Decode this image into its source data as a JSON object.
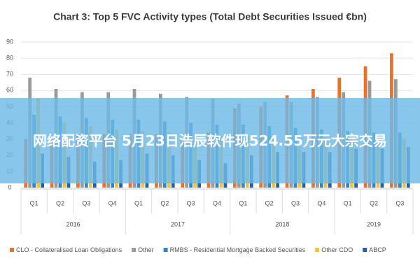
{
  "chart_data": {
    "type": "bar",
    "title": "Chart 3: Top 5 FVC Activity types (Total Debt Securities Issued €bn)",
    "categories": [
      "Q1",
      "Q2",
      "Q3",
      "Q4",
      "Q1",
      "Q2",
      "Q3",
      "Q4",
      "Q1",
      "Q2",
      "Q3",
      "Q4",
      "Q1",
      "Q2",
      "Q3"
    ],
    "year_labels": [
      "2016",
      "2017",
      "2018",
      "2019"
    ],
    "series": [
      {
        "name": "CLO - Collateralised Loan Obligations",
        "color": "#e8742c",
        "values": [
          30,
          31,
          33,
          33,
          33,
          33,
          30,
          34,
          49,
          50,
          57,
          61,
          68,
          75,
          83
        ]
      },
      {
        "name": "Other",
        "color": "#9a9a9a",
        "values": [
          68,
          61,
          59,
          59,
          61,
          58,
          56,
          55,
          52,
          53,
          53,
          56,
          59,
          66,
          67
        ]
      },
      {
        "name": "RMBS - Residential Mortgage Backed Securities",
        "color": "#2f86c8",
        "values": [
          45,
          44,
          43,
          42,
          42,
          41,
          40,
          39,
          39,
          38,
          37,
          36,
          35,
          34,
          34
        ]
      },
      {
        "name": "Other CDO",
        "color": "#f2c43c",
        "values": [
          55,
          40,
          38,
          36,
          35,
          34,
          33,
          32,
          32,
          32,
          31,
          31,
          30,
          30,
          30
        ]
      },
      {
        "name": "ABCP",
        "color": "#2560a8",
        "values": [
          21,
          19,
          16,
          17,
          21,
          20,
          17,
          15,
          20,
          22,
          22,
          22,
          24,
          24,
          25
        ]
      }
    ],
    "ylim": [
      0,
      90
    ],
    "yticks": [
      0,
      10,
      20,
      30,
      40,
      50,
      60,
      70,
      80,
      90
    ],
    "grid": true
  },
  "overlay_text": "网络配资平台 5月23日浩辰软件现524.55万元大宗交易"
}
